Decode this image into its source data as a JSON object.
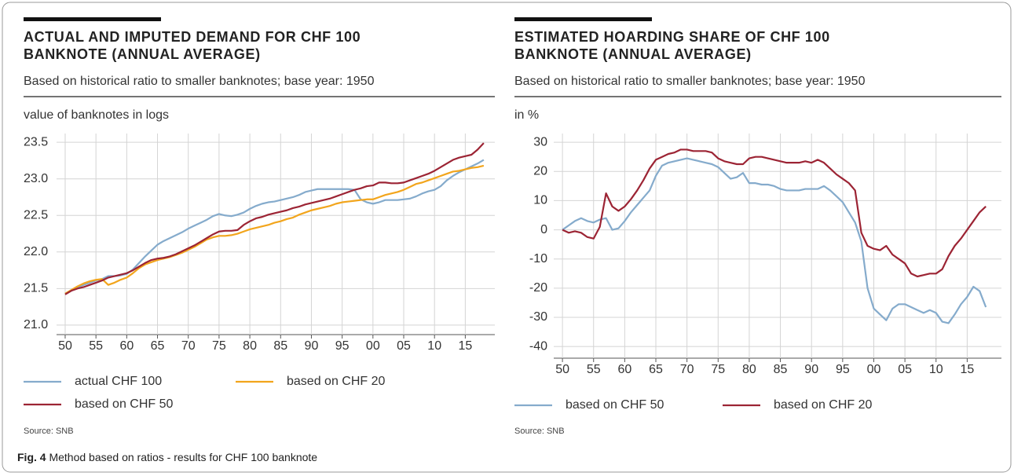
{
  "chart_data": [
    {
      "type": "line",
      "title": "ACTUAL AND IMPUTED DEMAND FOR CHF 100 BANKNOTE (ANNUAL AVERAGE)",
      "title_lines": [
        "ACTUAL AND IMPUTED DEMAND FOR CHF 100",
        "BANKNOTE (ANNUAL AVERAGE)"
      ],
      "subtitle": "Based on historical ratio to smaller banknotes; base year: 1950",
      "y_label": "value of banknotes in logs",
      "source": "Source: SNB",
      "x": [
        1950,
        1951,
        1952,
        1953,
        1954,
        1955,
        1956,
        1957,
        1958,
        1959,
        1960,
        1961,
        1962,
        1963,
        1964,
        1965,
        1966,
        1967,
        1968,
        1969,
        1970,
        1971,
        1972,
        1973,
        1974,
        1975,
        1976,
        1977,
        1978,
        1979,
        1980,
        1981,
        1982,
        1983,
        1984,
        1985,
        1986,
        1987,
        1988,
        1989,
        1990,
        1991,
        1992,
        1993,
        1994,
        1995,
        1996,
        1997,
        1998,
        1999,
        2000,
        2001,
        2002,
        2003,
        2004,
        2005,
        2006,
        2007,
        2008,
        2009,
        2010,
        2011,
        2012,
        2013,
        2014,
        2015,
        2016,
        2017,
        2018
      ],
      "xlim": [
        1948.6,
        2019.8
      ],
      "xticks": [
        {
          "value": 1950,
          "label": "50"
        },
        {
          "value": 1955,
          "label": "55"
        },
        {
          "value": 1960,
          "label": "60"
        },
        {
          "value": 1965,
          "label": "65"
        },
        {
          "value": 1970,
          "label": "70"
        },
        {
          "value": 1975,
          "label": "75"
        },
        {
          "value": 1980,
          "label": "80"
        },
        {
          "value": 1985,
          "label": "85"
        },
        {
          "value": 1990,
          "label": "90"
        },
        {
          "value": 1995,
          "label": "95"
        },
        {
          "value": 2000,
          "label": "00"
        },
        {
          "value": 2005,
          "label": "05"
        },
        {
          "value": 2010,
          "label": "10"
        },
        {
          "value": 2015,
          "label": "15"
        }
      ],
      "ylim": [
        20.87,
        23.62
      ],
      "yticks": [
        {
          "value": 21,
          "label": "21.0"
        },
        21.5,
        {
          "value": 22,
          "label": "22.0"
        },
        22.5,
        {
          "value": 23,
          "label": "23.0"
        },
        23.5
      ],
      "grid": true,
      "series": [
        {
          "name": "actual CHF 100",
          "color": "#85abcc",
          "values": [
            21.43,
            21.47,
            21.52,
            21.55,
            21.58,
            21.61,
            21.63,
            21.67,
            21.67,
            21.68,
            21.7,
            21.76,
            21.85,
            21.94,
            22.02,
            22.1,
            22.15,
            22.19,
            22.23,
            22.27,
            22.32,
            22.36,
            22.4,
            22.44,
            22.49,
            22.52,
            22.5,
            22.49,
            22.51,
            22.54,
            22.59,
            22.63,
            22.66,
            22.68,
            22.69,
            22.71,
            22.73,
            22.75,
            22.78,
            22.82,
            22.84,
            22.86,
            22.86,
            22.86,
            22.86,
            22.86,
            22.86,
            22.85,
            22.72,
            22.68,
            22.66,
            22.68,
            22.71,
            22.71,
            22.71,
            22.72,
            22.73,
            22.76,
            22.8,
            22.83,
            22.85,
            22.9,
            22.98,
            23.04,
            23.09,
            23.13,
            23.17,
            23.21,
            23.26
          ]
        },
        {
          "name": "based on CHF 20",
          "color": "#f2a51c",
          "values": [
            21.43,
            21.48,
            21.53,
            21.57,
            21.6,
            21.62,
            21.63,
            21.55,
            21.58,
            21.62,
            21.65,
            21.71,
            21.78,
            21.83,
            21.86,
            21.89,
            21.91,
            21.93,
            21.96,
            21.99,
            22.03,
            22.07,
            22.12,
            22.17,
            22.2,
            22.22,
            22.22,
            22.23,
            22.25,
            22.28,
            22.31,
            22.33,
            22.35,
            22.37,
            22.4,
            22.42,
            22.45,
            22.47,
            22.51,
            22.54,
            22.57,
            22.59,
            22.61,
            22.63,
            22.66,
            22.68,
            22.69,
            22.7,
            22.71,
            22.72,
            22.72,
            22.75,
            22.78,
            22.8,
            22.82,
            22.85,
            22.89,
            22.93,
            22.95,
            22.98,
            23.01,
            23.04,
            23.07,
            23.1,
            23.11,
            23.13,
            23.15,
            23.16,
            23.18
          ]
        },
        {
          "name": "based on CHF 50",
          "color": "#9c2434",
          "values": [
            21.42,
            21.47,
            21.5,
            21.52,
            21.55,
            21.58,
            21.61,
            21.65,
            21.67,
            21.69,
            21.71,
            21.75,
            21.8,
            21.85,
            21.89,
            21.91,
            21.92,
            21.94,
            21.97,
            22.01,
            22.05,
            22.09,
            22.14,
            22.19,
            22.24,
            22.28,
            22.29,
            22.29,
            22.3,
            22.37,
            22.42,
            22.46,
            22.48,
            22.51,
            22.53,
            22.55,
            22.57,
            22.6,
            22.62,
            22.65,
            22.67,
            22.69,
            22.71,
            22.73,
            22.76,
            22.79,
            22.82,
            22.85,
            22.87,
            22.9,
            22.91,
            22.95,
            22.95,
            22.94,
            22.94,
            22.95,
            22.98,
            23.01,
            23.04,
            23.07,
            23.11,
            23.16,
            23.21,
            23.26,
            23.29,
            23.31,
            23.33,
            23.4,
            23.49
          ]
        }
      ]
    },
    {
      "type": "line",
      "title": "ESTIMATED HOARDING SHARE OF CHF 100 BANKNOTE (ANNUAL AVERAGE)",
      "title_lines": [
        "ESTIMATED HOARDING SHARE OF CHF 100",
        "BANKNOTE (ANNUAL AVERAGE)"
      ],
      "subtitle": "Based on historical ratio to smaller banknotes; base year: 1950",
      "y_label": "in %",
      "source": "Source: SNB",
      "x": [
        1950,
        1951,
        1952,
        1953,
        1954,
        1955,
        1956,
        1957,
        1958,
        1959,
        1960,
        1961,
        1962,
        1963,
        1964,
        1965,
        1966,
        1967,
        1968,
        1969,
        1970,
        1971,
        1972,
        1973,
        1974,
        1975,
        1976,
        1977,
        1978,
        1979,
        1980,
        1981,
        1982,
        1983,
        1984,
        1985,
        1986,
        1987,
        1988,
        1989,
        1990,
        1991,
        1992,
        1993,
        1994,
        1995,
        1996,
        1997,
        1998,
        1999,
        2000,
        2001,
        2002,
        2003,
        2004,
        2005,
        2006,
        2007,
        2008,
        2009,
        2010,
        2011,
        2012,
        2013,
        2014,
        2015,
        2016,
        2017,
        2018
      ],
      "xlim": [
        1948.6,
        2020.5
      ],
      "xticks": [
        {
          "value": 1950,
          "label": "50"
        },
        {
          "value": 1955,
          "label": "55"
        },
        {
          "value": 1960,
          "label": "60"
        },
        {
          "value": 1965,
          "label": "65"
        },
        {
          "value": 1970,
          "label": "70"
        },
        {
          "value": 1975,
          "label": "75"
        },
        {
          "value": 1980,
          "label": "80"
        },
        {
          "value": 1985,
          "label": "85"
        },
        {
          "value": 1990,
          "label": "90"
        },
        {
          "value": 1995,
          "label": "95"
        },
        {
          "value": 2000,
          "label": "00"
        },
        {
          "value": 2005,
          "label": "05"
        },
        {
          "value": 2010,
          "label": "10"
        },
        {
          "value": 2015,
          "label": "15"
        }
      ],
      "ylim": [
        -44,
        33
      ],
      "yticks": [
        -40,
        -30,
        -20,
        -10,
        0,
        10,
        20,
        30
      ],
      "grid": true,
      "series": [
        {
          "name": "based on CHF 50",
          "color": "#85abcc",
          "values": [
            0,
            1.5,
            3,
            4,
            3,
            2.5,
            3.5,
            4,
            0,
            0.5,
            3,
            6,
            8.5,
            11,
            13.5,
            18.5,
            22,
            23,
            23.5,
            24,
            24.5,
            24,
            23.5,
            23,
            22.5,
            21.5,
            19.5,
            17.5,
            18,
            19.5,
            16,
            16,
            15.5,
            15.5,
            15,
            14,
            13.5,
            13.5,
            13.5,
            14,
            14,
            14,
            15,
            13.5,
            11.5,
            9.5,
            6,
            2.5,
            -4,
            -20,
            -27,
            -29,
            -31,
            -27,
            -25.5,
            -25.5,
            -26.5,
            -27.5,
            -28.5,
            -27.5,
            -28.5,
            -31.5,
            -32,
            -29,
            -25.5,
            -23,
            -19.5,
            -21,
            -26.5
          ]
        },
        {
          "name": "based on CHF 20",
          "color": "#9c2434",
          "values": [
            0,
            -1,
            -0.5,
            -1,
            -2.5,
            -3,
            1,
            12.5,
            8,
            6.5,
            8,
            10.5,
            13.5,
            17,
            21,
            24,
            25,
            26,
            26.5,
            27.5,
            27.5,
            27,
            27,
            27,
            26.5,
            24.5,
            23.5,
            23,
            22.5,
            22.5,
            24.5,
            25,
            25,
            24.5,
            24,
            23.5,
            23,
            23,
            23,
            23.5,
            23,
            24,
            23,
            21,
            19,
            17.5,
            16,
            13.5,
            -1,
            -5.5,
            -6.5,
            -7,
            -5.5,
            -8.5,
            -10,
            -11.5,
            -15,
            -16,
            -15.5,
            -15,
            -15,
            -13.5,
            -9,
            -5.5,
            -3,
            0,
            3,
            6,
            8
          ]
        }
      ]
    }
  ],
  "figure_caption": {
    "label": "Fig. 4",
    "text": "Method based on ratios - results for CHF 100 banknote"
  }
}
